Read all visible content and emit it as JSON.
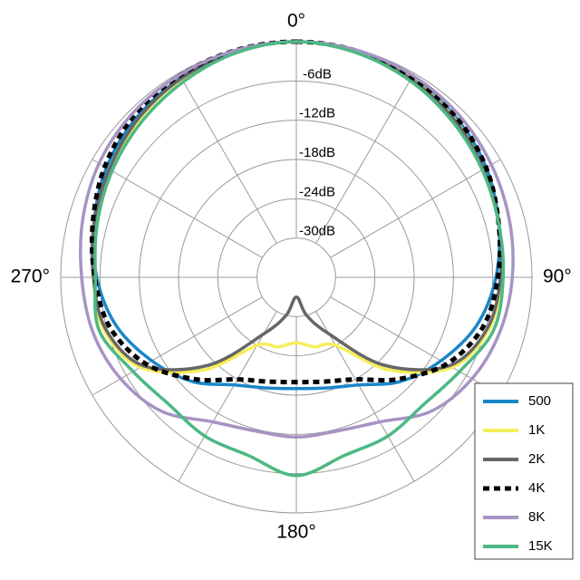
{
  "chart_data": {
    "type": "polar",
    "theta": [
      0,
      15,
      30,
      45,
      60,
      75,
      90,
      105,
      120,
      135,
      150,
      165,
      180,
      195,
      210,
      225,
      240,
      255,
      270,
      285,
      300,
      315,
      330,
      345
    ],
    "rlim": [
      -36,
      0
    ],
    "rticks": [
      {
        "value": -6,
        "label": "-6dB"
      },
      {
        "value": -12,
        "label": "-12dB"
      },
      {
        "value": -18,
        "label": "-18dB"
      },
      {
        "value": -24,
        "label": "-24dB"
      },
      {
        "value": -30,
        "label": "-30dB"
      }
    ],
    "thetaticks": [
      {
        "value": 0,
        "label": "0°"
      },
      {
        "value": 90,
        "label": "90°"
      },
      {
        "value": 180,
        "label": "180°"
      },
      {
        "value": 270,
        "label": "270°"
      }
    ],
    "legend": "lower right",
    "series": [
      {
        "name": "500",
        "color": "#1a86c8",
        "values": [
          0,
          -0.3,
          -0.8,
          -1.5,
          -2.5,
          -4,
          -5.5,
          -7.5,
          -10.5,
          -13.5,
          -17,
          -18.5,
          -19,
          -18.5,
          -17,
          -13.5,
          -10.5,
          -7.5,
          -5.5,
          -4,
          -2.5,
          -1.5,
          -0.8,
          -0.3
        ]
      },
      {
        "name": "1K",
        "color": "#f4ef5a",
        "values": [
          0,
          -0.3,
          -0.9,
          -1.8,
          -3,
          -4,
          -4.7,
          -5.5,
          -8.5,
          -16,
          -24,
          -25,
          -26,
          -25,
          -24,
          -16,
          -8.5,
          -5.5,
          -5,
          -4.2,
          -3.2,
          -2,
          -1,
          -0.3
        ]
      },
      {
        "name": "2K",
        "color": "#666666",
        "values": [
          0,
          -0.4,
          -1,
          -1.9,
          -3,
          -4,
          -4.8,
          -5.8,
          -9,
          -17,
          -26,
          -30,
          -33,
          -30,
          -26,
          -17,
          -9,
          -5.8,
          -5,
          -4,
          -3,
          -1.8,
          -0.9,
          -0.3
        ]
      },
      {
        "name": "4K",
        "color": "#000000",
        "dashed": true,
        "values": [
          0,
          -0.2,
          -0.7,
          -1.4,
          -2.5,
          -4,
          -5.2,
          -6.5,
          -9.5,
          -14,
          -18,
          -19.5,
          -20,
          -19.5,
          -18,
          -14,
          -9.5,
          -6.5,
          -5.2,
          -3.8,
          -2.2,
          -1,
          -0.4,
          -0.1
        ]
      },
      {
        "name": "8K",
        "color": "#a793c4",
        "values": [
          0,
          -0.1,
          -0.4,
          -0.9,
          -1.6,
          -2.3,
          -3,
          -3.8,
          -5,
          -7,
          -10.5,
          -11.7,
          -11.6,
          -11.7,
          -10.5,
          -7,
          -5,
          -3.8,
          -3.2,
          -2.2,
          -1.2,
          -0.6,
          -0.3,
          -0.1
        ]
      },
      {
        "name": "15K",
        "color": "#4db884",
        "values": [
          0,
          -0.5,
          -1.3,
          -2.3,
          -3.2,
          -4,
          -4.4,
          -4.8,
          -7.2,
          -8.5,
          -8,
          -7.8,
          -5.7,
          -7.8,
          -8,
          -8.5,
          -7.2,
          -4.8,
          -5.3,
          -4.5,
          -3.5,
          -2.5,
          -1.5,
          -0.5
        ]
      }
    ]
  }
}
